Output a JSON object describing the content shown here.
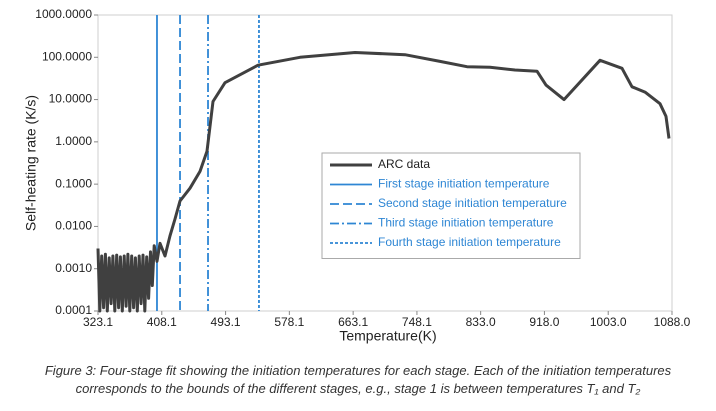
{
  "chart_data": {
    "type": "line",
    "xlabel": "Temperature(K)",
    "ylabel": "Self-heating rate (K/s)",
    "xlim": [
      323.1,
      1088.0
    ],
    "xticks": [
      323.1,
      408.1,
      493.1,
      578.1,
      663.1,
      748.1,
      {
        "value": 833.0,
        "label": "833.0"
      },
      {
        "value": 918.0,
        "label": "918.0"
      },
      {
        "value": 1003.0,
        "label": "1003.0"
      },
      {
        "value": 1088.0,
        "label": "1088.0"
      }
    ],
    "ylim": [
      0.0001,
      1000
    ],
    "ylog": true,
    "yticks": [
      0.0001,
      {
        "value": 0.001,
        "label": "0.0010"
      },
      {
        "value": 0.01,
        "label": "0.0100"
      },
      {
        "value": 0.1,
        "label": "0.1000"
      },
      {
        "value": 1,
        "label": "1.0000"
      },
      {
        "value": 10,
        "label": "10.0000"
      },
      {
        "value": 100,
        "label": "100.0000"
      },
      {
        "value": 1000,
        "label": "1000.0000"
      }
    ],
    "grid": false,
    "legend": "center",
    "series": [
      {
        "name": "ARC data",
        "color": "#404040",
        "x": [
          323.1,
          325.5,
          328,
          330.5,
          333,
          335.5,
          338,
          340.5,
          343,
          345.5,
          348,
          350.5,
          353,
          355.5,
          358,
          360.5,
          363,
          365.5,
          368,
          370.5,
          373,
          375.5,
          378,
          380.5,
          383,
          385.5,
          388,
          390.5,
          393,
          395.5,
          398,
          401.7,
          405.7,
          412.4,
          419,
          425.7,
          432.4,
          445.7,
          459,
          468.4,
          476.3,
          492.3,
          536.3,
          592.3,
          665.6,
          732.2,
          778.9,
          814.8,
          845.5,
          878.8,
          908.1,
          920.1,
          944.1,
          992.1,
          1021.4,
          1034.7,
          1052,
          1072,
          1080,
          1084
        ],
        "values": [
          0.003,
          0.0001,
          0.002,
          0.00012,
          0.0022,
          0.0001,
          0.0018,
          0.00015,
          0.002,
          0.0001,
          0.0021,
          0.00012,
          0.0019,
          0.0001,
          0.002,
          0.00013,
          0.0022,
          0.0001,
          0.002,
          0.00012,
          0.0018,
          0.0001,
          0.002,
          0.00015,
          0.0021,
          0.0001,
          0.0019,
          0.0002,
          0.0025,
          0.0004,
          0.0035,
          0.0015,
          0.004,
          0.002,
          0.006,
          0.015,
          0.04,
          0.08,
          0.2,
          0.6,
          9,
          25,
          65,
          100,
          130,
          115,
          80,
          60,
          58,
          50,
          47,
          22,
          10,
          85,
          55,
          20,
          15,
          8,
          4,
          1.2
        ]
      }
    ],
    "markers": [
      {
        "name": "First stage initiation temperature",
        "value": 401.7,
        "color": "#2e86d4",
        "dash": "solid"
      },
      {
        "name": "Second stage initiation temperature",
        "value": 432.4,
        "color": "#2e86d4",
        "dash": "dashed"
      },
      {
        "name": "Third stage initiation temperature",
        "value": 469.7,
        "color": "#2e86d4",
        "dash": "dashdot"
      },
      {
        "name": "Fourth stage initiation temperature",
        "value": 537.6,
        "color": "#2e86d4",
        "dash": "dotted"
      }
    ],
    "caption": [
      "Figure 3: Four-stage fit showing the initiation temperatures for each stage. Each of the initiation temperatures",
      "corresponds to the bounds of the different stages, e.g., stage 1 is between temperatures T₁ and T₂"
    ]
  }
}
